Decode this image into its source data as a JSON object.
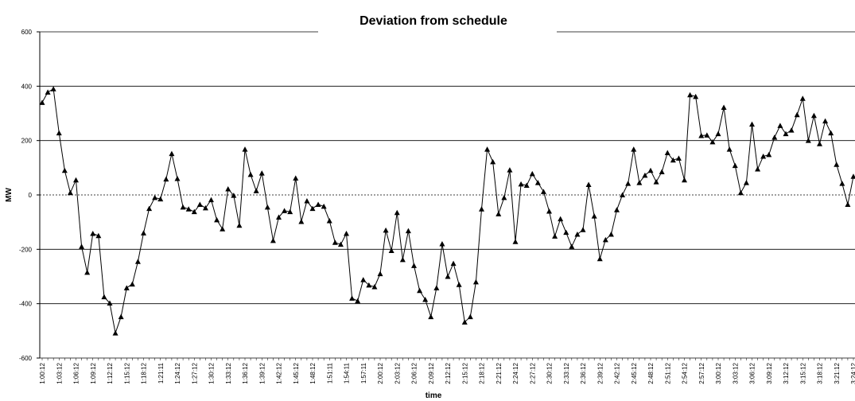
{
  "chart_data": {
    "type": "line",
    "title": "Deviation from schedule",
    "x_label": "time",
    "y_label": "MW",
    "categories": [
      "1:00:12",
      null,
      null,
      "1:03:12",
      null,
      null,
      "1:06:12",
      null,
      null,
      "1:09:12",
      null,
      null,
      "1:12:12",
      null,
      null,
      "1:15:12",
      null,
      null,
      "1:18:12",
      null,
      null,
      "1:21:11",
      null,
      null,
      "1:24:12",
      null,
      null,
      "1:27:12",
      null,
      null,
      "1:30:12",
      null,
      null,
      "1:33:12",
      null,
      null,
      "1:36:12",
      null,
      null,
      "1:39:12",
      null,
      null,
      "1:42:12",
      null,
      null,
      "1:45:12",
      null,
      null,
      "1:48:12",
      null,
      null,
      "1:51:11",
      null,
      null,
      "1:54:11",
      null,
      null,
      "1:57:11",
      null,
      null,
      "2:00:12",
      null,
      null,
      "2:03:12",
      null,
      null,
      "2:06:12",
      null,
      null,
      "2:09:12",
      null,
      null,
      "2:12:12",
      null,
      null,
      "2:15:12",
      null,
      null,
      "2:18:12",
      null,
      null,
      "2:21:12",
      null,
      null,
      "2:24:12",
      null,
      null,
      "2:27:12",
      null,
      null,
      "2:30:12",
      null,
      null,
      "2:33:12",
      null,
      null,
      "2:36:12",
      null,
      null,
      "2:39:12",
      null,
      null,
      "2:42:12",
      null,
      null,
      "2:45:12",
      null,
      null,
      "2:48:12",
      null,
      null,
      "2:51:12",
      null,
      null,
      "2:54:12",
      null,
      null,
      "2:57:12",
      null,
      null,
      "3:00:12",
      null,
      null,
      "3:03:12",
      null,
      null,
      "3:06:12",
      null,
      null,
      "3:09:12",
      null,
      null,
      "3:12:12",
      null,
      null,
      "3:15:12",
      null,
      null,
      "3:18:12",
      null,
      null,
      "3:21:12",
      null,
      null,
      "3:24:12"
    ],
    "series": [
      {
        "color": "#000000",
        "values": [
          340,
          378,
          390,
          228,
          90,
          8,
          55,
          -190,
          -285,
          -142,
          -150,
          -375,
          -398,
          -508,
          -448,
          -342,
          -328,
          -245,
          -140,
          -50,
          -10,
          -15,
          58,
          152,
          60,
          -45,
          -52,
          -62,
          -35,
          -48,
          -18,
          -92,
          -125,
          22,
          -2,
          -112,
          168,
          75,
          15,
          80,
          -45,
          -168,
          -82,
          -58,
          -62,
          62,
          -98,
          -22,
          -50,
          -35,
          -42,
          -95,
          -175,
          -182,
          -142,
          -380,
          -390,
          -312,
          -332,
          -338,
          -290,
          -130,
          -205,
          -65,
          -238,
          -132,
          -260,
          -352,
          -385,
          -448,
          -342,
          -180,
          -300,
          -252,
          -330,
          -468,
          -448,
          -320,
          -52,
          168,
          122,
          -70,
          -10,
          92,
          -172,
          40,
          35,
          78,
          45,
          12,
          -60,
          -152,
          -88,
          -138,
          -190,
          -145,
          -128,
          38,
          -78,
          -235,
          -165,
          -145,
          -55,
          0,
          42,
          168,
          45,
          72,
          90,
          48,
          85,
          155,
          128,
          135,
          55,
          368,
          362,
          218,
          220,
          195,
          225,
          322,
          168,
          108,
          8,
          45,
          260,
          95,
          142,
          148,
          212,
          255,
          225,
          238,
          295,
          355,
          200,
          292,
          188,
          272,
          228,
          112,
          42,
          -35,
          68
        ]
      }
    ],
    "ylim": [
      -600,
      600
    ],
    "yticks": [
      -600,
      -400,
      -200,
      0,
      200,
      400,
      600
    ],
    "grid": true,
    "marker": "triangle"
  }
}
